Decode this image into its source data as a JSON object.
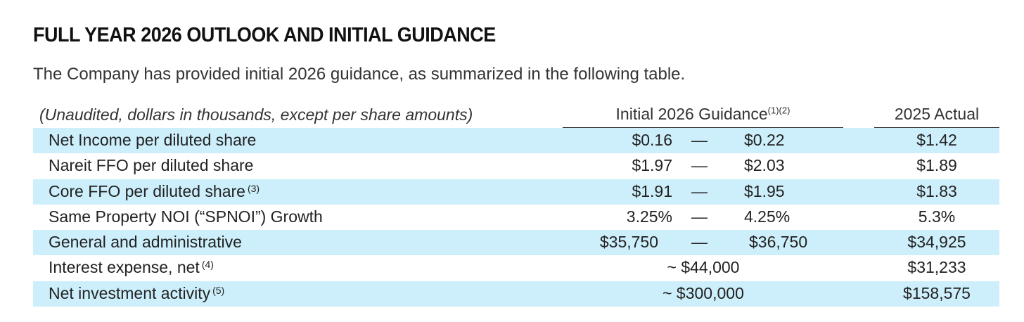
{
  "title": "FULL YEAR 2026 OUTLOOK AND INITIAL GUIDANCE",
  "subtitle": "The Company has provided initial 2026 guidance, as summarized in the following table.",
  "table": {
    "units_note": "(Unaudited, dollars in thousands, except per share amounts)",
    "guidance_header": "Initial 2026 Guidance",
    "guidance_header_note": "(1)(2)",
    "actual_header": "2025 Actual",
    "range_separator": "—",
    "rows": [
      {
        "label": "Net Income per diluted share",
        "note": "",
        "low": "$0.16",
        "high": "$0.22",
        "approx": "",
        "actual": "$1.42"
      },
      {
        "label": "Nareit FFO per diluted share",
        "note": "",
        "low": "$1.97",
        "high": "$2.03",
        "approx": "",
        "actual": "$1.89"
      },
      {
        "label": "Core FFO per diluted share",
        "note": "(3)",
        "low": "$1.91",
        "high": "$1.95",
        "approx": "",
        "actual": "$1.83"
      },
      {
        "label": "Same Property NOI (“SPNOI”) Growth",
        "note": "",
        "low": "3.25%",
        "high": "4.25%",
        "approx": "",
        "actual": "5.3%"
      },
      {
        "label": "General and administrative",
        "note": "",
        "low": "$35,750",
        "high": "$36,750",
        "approx": "",
        "actual": "$34,925"
      },
      {
        "label": "Interest expense, net",
        "note": "(4)",
        "low": "",
        "high": "",
        "approx": "~ $44,000",
        "actual": "$31,233"
      },
      {
        "label": "Net investment activity",
        "note": "(5)",
        "low": "",
        "high": "",
        "approx": "~ $300,000",
        "actual": "$158,575"
      }
    ]
  }
}
